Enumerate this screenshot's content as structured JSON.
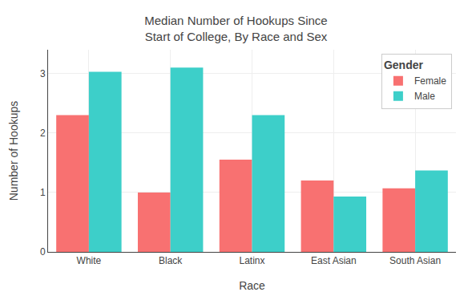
{
  "chart_data": {
    "type": "bar",
    "title": "Median Number of Hookups Since\nStart of College, By Race and Sex",
    "xlabel": "Race",
    "ylabel": "Number of Hookups",
    "categories": [
      "White",
      "Black",
      "Latinx",
      "East Asian",
      "South Asian"
    ],
    "series": [
      {
        "name": "Female",
        "color": "#F87171",
        "values": [
          2.3,
          1.0,
          1.55,
          1.2,
          1.07
        ]
      },
      {
        "name": "Male",
        "color": "#3DCFC9",
        "values": [
          3.03,
          3.1,
          2.3,
          0.93,
          1.37
        ]
      }
    ],
    "legend_title": "Gender",
    "legend": "upper right",
    "ylim": [
      0,
      3.4
    ],
    "yticks": [
      0,
      1,
      2,
      3
    ],
    "grid": true
  }
}
